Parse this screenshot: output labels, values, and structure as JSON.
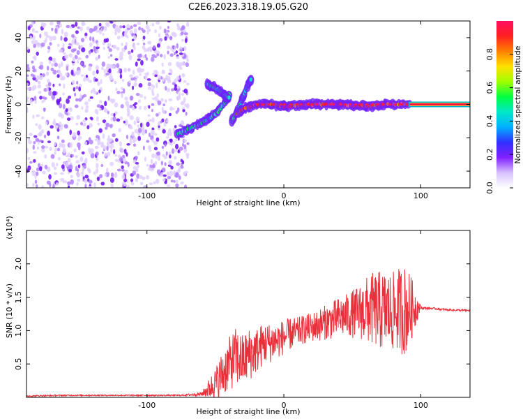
{
  "title": "C2E6.2023.318.19.05.G20",
  "chart_data": [
    {
      "type": "heatmap",
      "xlabel": "Height of straight line (km)",
      "ylabel": "Frequency (Hz)",
      "xlim": [
        -188,
        136
      ],
      "ylim": [
        -50,
        50
      ],
      "xticks": [
        -100,
        0,
        100
      ],
      "yticks": [
        -40,
        -20,
        0,
        20,
        40
      ],
      "colorbar": {
        "label": "Normalized spectral amplitude",
        "range": [
          0,
          1
        ],
        "ticks": [
          0.0,
          0.2,
          0.4,
          0.6,
          0.8
        ],
        "colormap": [
          "#ffffff",
          "#d7c0ff",
          "#8020ff",
          "#3030ff",
          "#00b0ff",
          "#00e8c8",
          "#00ff40",
          "#a0ff00",
          "#ffe000",
          "#ff8000",
          "#ff2020",
          "#ff1060"
        ]
      },
      "features": [
        {
          "name": "noise",
          "x_range": [
            -188,
            -70
          ],
          "y_range": [
            -50,
            50
          ],
          "amplitude": 0.1
        },
        {
          "name": "trace",
          "points": [
            [
              -78,
              -18
            ],
            [
              -70,
              -15
            ],
            [
              -62,
              -12
            ],
            [
              -54,
              -8
            ],
            [
              -48,
              -4
            ],
            [
              -42,
              2
            ],
            [
              -40,
              6
            ]
          ],
          "amplitude": 0.35
        },
        {
          "name": "trace",
          "points": [
            [
              -56,
              12
            ],
            [
              -50,
              10
            ],
            [
              -44,
              6
            ],
            [
              -40,
              4
            ]
          ],
          "amplitude": 0.3
        },
        {
          "name": "trace",
          "points": [
            [
              -38,
              -10
            ],
            [
              -34,
              -4
            ],
            [
              -30,
              4
            ],
            [
              -26,
              12
            ],
            [
              -24,
              15
            ]
          ],
          "amplitude": 0.3
        },
        {
          "name": "trace",
          "points": [
            [
              -34,
              -6
            ],
            [
              -28,
              -2
            ],
            [
              -20,
              0
            ],
            [
              -10,
              0
            ],
            [
              0,
              -1
            ],
            [
              20,
              0
            ],
            [
              40,
              0
            ],
            [
              60,
              -1
            ],
            [
              75,
              0
            ],
            [
              92,
              0
            ]
          ],
          "amplitude": 0.8
        },
        {
          "name": "line",
          "points": [
            [
              92,
              0
            ],
            [
              136,
              0
            ]
          ],
          "amplitude": 0.95
        }
      ]
    },
    {
      "type": "line",
      "xlabel": "Height of straight line (km)",
      "ylabel": "SNR (10 * v/v)",
      "multiplier": "(x10⁴)",
      "xlim": [
        -188,
        136
      ],
      "ylim": [
        0,
        2.5
      ],
      "xticks": [
        -100,
        0,
        100
      ],
      "yticks": [
        0.5,
        1.0,
        1.5,
        2.0
      ],
      "color": "#e8303a",
      "series": [
        {
          "x": [
            -188,
            -160,
            -130,
            -100,
            -75,
            -60,
            -50,
            -45,
            -40,
            -35,
            -30,
            -25,
            -20,
            -15,
            -10,
            -5,
            0,
            5,
            10,
            15,
            20,
            25,
            30,
            35,
            40,
            45,
            50,
            55,
            60,
            65,
            70,
            75,
            80,
            85,
            88,
            92,
            96,
            100,
            110,
            120,
            136
          ],
          "y": [
            0.02,
            0.03,
            0.03,
            0.03,
            0.03,
            0.05,
            0.2,
            0.35,
            0.5,
            0.6,
            0.55,
            0.65,
            0.7,
            0.8,
            0.82,
            0.85,
            0.9,
            0.95,
            0.98,
            1.02,
            1.05,
            1.08,
            1.12,
            1.15,
            1.2,
            1.22,
            1.25,
            1.28,
            1.3,
            1.32,
            1.3,
            1.3,
            1.28,
            1.32,
            1.3,
            1.32,
            1.34,
            1.34,
            1.33,
            1.31,
            1.3
          ],
          "noise_amplitude": [
            0.01,
            0.01,
            0.01,
            0.01,
            0.01,
            0.03,
            0.25,
            0.35,
            0.4,
            0.45,
            0.4,
            0.4,
            0.35,
            0.32,
            0.3,
            0.28,
            0.26,
            0.24,
            0.22,
            0.22,
            0.22,
            0.24,
            0.26,
            0.28,
            0.3,
            0.32,
            0.36,
            0.4,
            0.5,
            0.55,
            0.6,
            0.6,
            0.6,
            0.65,
            0.7,
            0.55,
            0.3,
            0.02,
            0.015,
            0.015,
            0.015
          ]
        }
      ]
    }
  ]
}
